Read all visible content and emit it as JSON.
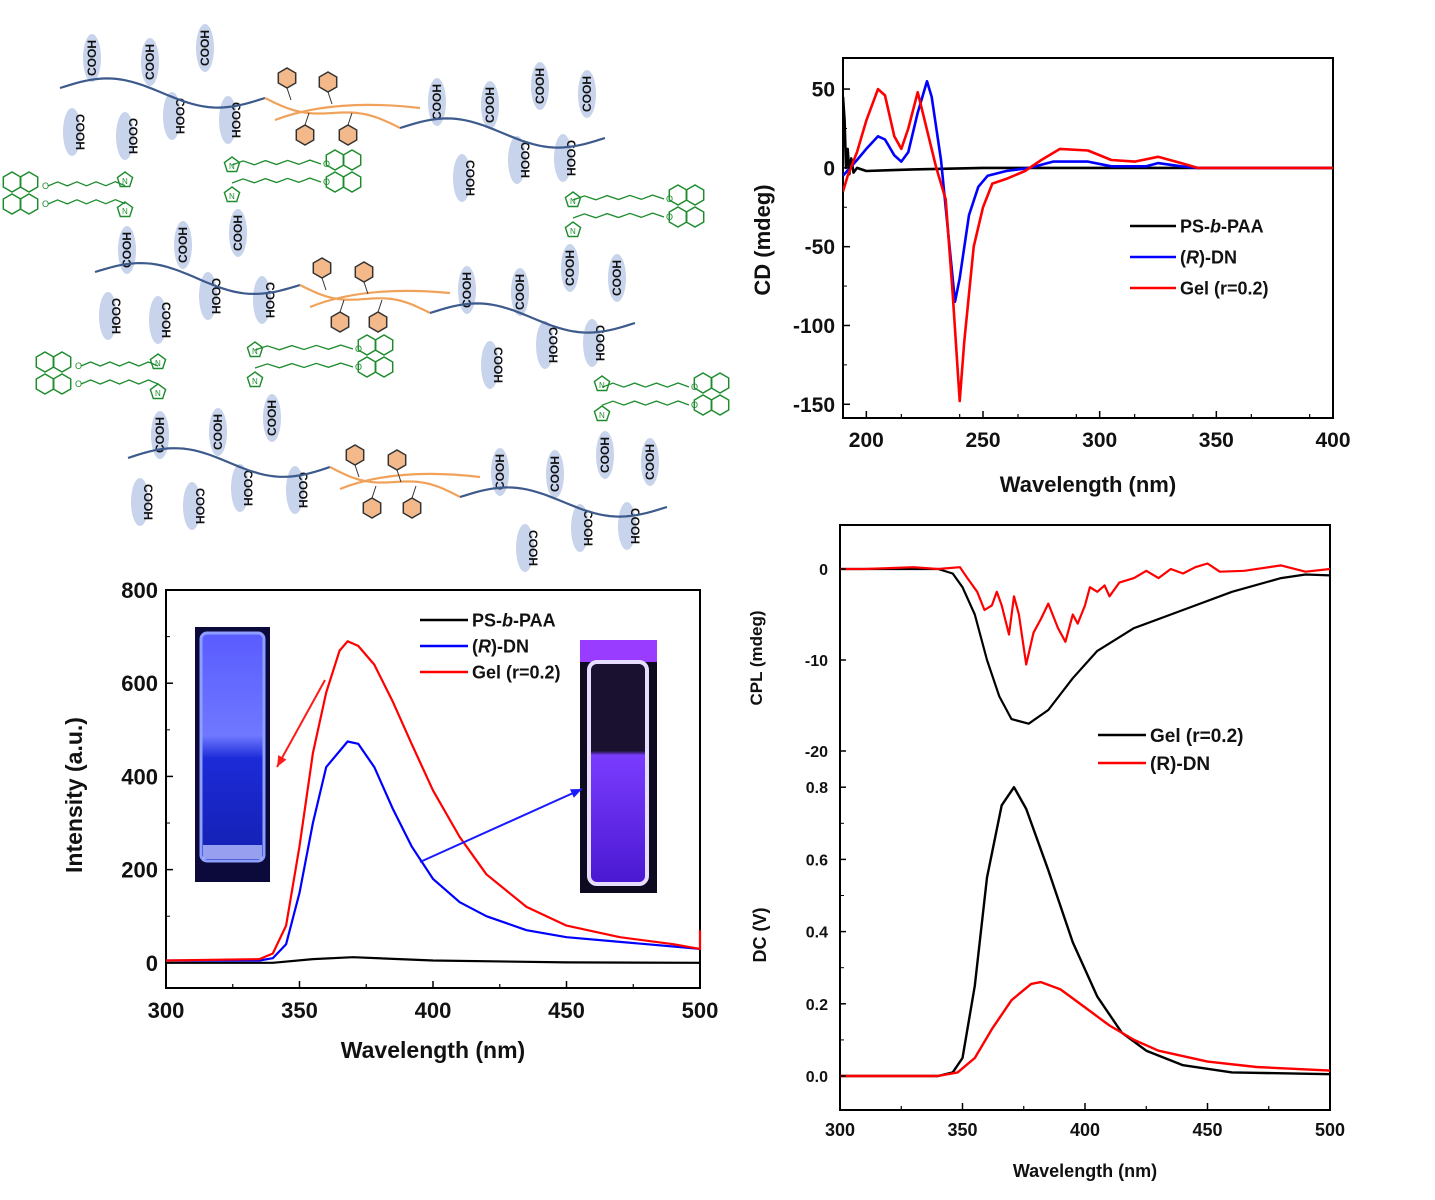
{
  "scheme": {
    "cooh_label": "COOH",
    "atom_n": "N",
    "atom_o": "O",
    "colors": {
      "chain": "#3d5a8c",
      "ps_block": "#f0a25a",
      "phenyl": "#f3b98a",
      "cooh_bg": "#c8d3ec",
      "crosslinker": "#1e8c2e"
    }
  },
  "chart_data": [
    {
      "id": "cd",
      "type": "line",
      "title": "",
      "xlabel": "Wavelength (nm)",
      "ylabel": "CD (mdeg)",
      "xlim": [
        190,
        400
      ],
      "ylim": [
        -158.7,
        69.7
      ],
      "xticks": [
        200,
        250,
        300,
        350,
        400
      ],
      "yticks": [
        -150,
        -100,
        -50,
        0,
        50
      ],
      "grid": false,
      "legend": "right-middle",
      "series": [
        {
          "name": "PS-b-PAA",
          "color": "#000000",
          "points": [
            [
              190,
              45
            ],
            [
              190.7,
              30
            ],
            [
              191.3,
              0
            ],
            [
              192,
              12
            ],
            [
              192.7,
              -4
            ],
            [
              193.5,
              6
            ],
            [
              194.5,
              -3
            ],
            [
              196,
              0
            ],
            [
              200,
              -2
            ],
            [
              210,
              -1.5
            ],
            [
              220,
              -1
            ],
            [
              250,
              0
            ],
            [
              300,
              0
            ],
            [
              400,
              0
            ]
          ]
        },
        {
          "name": "(R)-DN",
          "color": "#0000ff",
          "points": [
            [
              190,
              -5
            ],
            [
              193,
              0
            ],
            [
              196,
              5
            ],
            [
              200,
              12
            ],
            [
              205,
              20
            ],
            [
              208,
              18
            ],
            [
              212,
              8
            ],
            [
              215,
              4
            ],
            [
              218,
              10
            ],
            [
              222,
              35
            ],
            [
              226,
              55
            ],
            [
              228,
              45
            ],
            [
              232,
              5
            ],
            [
              235,
              -40
            ],
            [
              238,
              -85
            ],
            [
              240,
              -70
            ],
            [
              244,
              -30
            ],
            [
              248,
              -12
            ],
            [
              252,
              -5
            ],
            [
              260,
              -2
            ],
            [
              270,
              0
            ],
            [
              280,
              4
            ],
            [
              295,
              4
            ],
            [
              305,
              1
            ],
            [
              320,
              1
            ],
            [
              325,
              3
            ],
            [
              335,
              1
            ],
            [
              342,
              0
            ],
            [
              400,
              0
            ]
          ]
        },
        {
          "name": "Gel (r=0.2)",
          "color": "#ff0000",
          "points": [
            [
              190,
              -15
            ],
            [
              192,
              -5
            ],
            [
              196,
              10
            ],
            [
              200,
              30
            ],
            [
              205,
              50
            ],
            [
              208,
              46
            ],
            [
              212,
              20
            ],
            [
              215,
              12
            ],
            [
              218,
              25
            ],
            [
              222,
              48
            ],
            [
              225,
              30
            ],
            [
              230,
              0
            ],
            [
              234,
              -20
            ],
            [
              237,
              -80
            ],
            [
              240,
              -148
            ],
            [
              242,
              -110
            ],
            [
              246,
              -50
            ],
            [
              250,
              -25
            ],
            [
              254,
              -10
            ],
            [
              260,
              -7
            ],
            [
              268,
              -2
            ],
            [
              275,
              5
            ],
            [
              283,
              12
            ],
            [
              295,
              11
            ],
            [
              305,
              5
            ],
            [
              315,
              4
            ],
            [
              325,
              7
            ],
            [
              335,
              3
            ],
            [
              342,
              0
            ],
            [
              400,
              0
            ]
          ]
        }
      ]
    },
    {
      "id": "pl",
      "type": "line",
      "title": "",
      "xlabel": "Wavelength (nm)",
      "ylabel": "Intensity (a.u.)",
      "xlim": [
        300,
        500
      ],
      "ylim": [
        -54,
        800
      ],
      "xticks": [
        300,
        350,
        400,
        450,
        500
      ],
      "yticks": [
        0,
        200,
        400,
        600,
        800
      ],
      "grid": false,
      "legend": "top-right",
      "series": [
        {
          "name": "PS-b-PAA",
          "color": "#000000",
          "points": [
            [
              300,
              0
            ],
            [
              340,
              0
            ],
            [
              355,
              8
            ],
            [
              370,
              12
            ],
            [
              400,
              5
            ],
            [
              450,
              1
            ],
            [
              500,
              0
            ]
          ]
        },
        {
          "name": "(R)-DN",
          "color": "#0000ff",
          "points": [
            [
              300,
              5
            ],
            [
              335,
              5
            ],
            [
              340,
              10
            ],
            [
              345,
              40
            ],
            [
              350,
              150
            ],
            [
              355,
              300
            ],
            [
              360,
              420
            ],
            [
              368,
              475
            ],
            [
              372,
              470
            ],
            [
              378,
              420
            ],
            [
              385,
              330
            ],
            [
              392,
              250
            ],
            [
              400,
              180
            ],
            [
              410,
              130
            ],
            [
              420,
              100
            ],
            [
              435,
              70
            ],
            [
              450,
              55
            ],
            [
              470,
              45
            ],
            [
              490,
              35
            ],
            [
              500,
              30
            ]
          ]
        },
        {
          "name": "Gel (r=0.2)",
          "color": "#ff0000",
          "points": [
            [
              300,
              5
            ],
            [
              335,
              8
            ],
            [
              340,
              20
            ],
            [
              345,
              80
            ],
            [
              350,
              250
            ],
            [
              355,
              450
            ],
            [
              360,
              580
            ],
            [
              365,
              670
            ],
            [
              368,
              690
            ],
            [
              372,
              680
            ],
            [
              378,
              640
            ],
            [
              385,
              560
            ],
            [
              392,
              470
            ],
            [
              400,
              370
            ],
            [
              410,
              270
            ],
            [
              420,
              190
            ],
            [
              435,
              120
            ],
            [
              450,
              80
            ],
            [
              470,
              55
            ],
            [
              490,
              40
            ],
            [
              500,
              30
            ],
            [
              500,
              70
            ]
          ]
        }
      ],
      "insets": {
        "left_photo": {
          "description_color": "#2a2aff"
        },
        "right_photo": {
          "description_color": "#5a1aff"
        }
      }
    },
    {
      "id": "cpl",
      "type": "line",
      "title": "",
      "xlabel": "Wavelength (nm)",
      "ylabel": "CPL (mdeg)",
      "xlim": [
        300,
        500
      ],
      "ylim": [
        -21,
        4.8
      ],
      "xticks": [
        300,
        350,
        400,
        450,
        500
      ],
      "yticks": [
        -20,
        -10,
        0
      ],
      "grid": false,
      "legend": "right-bottom",
      "series": [
        {
          "name": "Gel (r=0.2)",
          "color": "#000000",
          "points": [
            [
              300,
              0
            ],
            [
              340,
              0
            ],
            [
              346,
              -0.5
            ],
            [
              350,
              -2
            ],
            [
              355,
              -5
            ],
            [
              360,
              -10
            ],
            [
              365,
              -14
            ],
            [
              370,
              -16.5
            ],
            [
              377,
              -17
            ],
            [
              385,
              -15.5
            ],
            [
              395,
              -12
            ],
            [
              405,
              -9
            ],
            [
              420,
              -6.5
            ],
            [
              440,
              -4.5
            ],
            [
              460,
              -2.5
            ],
            [
              480,
              -1
            ],
            [
              490,
              -0.6
            ],
            [
              500,
              -0.7
            ]
          ]
        },
        {
          "name": "(R)-DN",
          "color": "#ff0000",
          "points": [
            [
              300,
              0
            ],
            [
              310,
              0
            ],
            [
              330,
              0.2
            ],
            [
              340,
              0
            ],
            [
              349,
              0.2
            ],
            [
              352,
              -1
            ],
            [
              356,
              -2.5
            ],
            [
              359,
              -4.5
            ],
            [
              362,
              -4
            ],
            [
              364,
              -2.5
            ],
            [
              366,
              -4
            ],
            [
              369,
              -7.2
            ],
            [
              371,
              -3
            ],
            [
              373,
              -5
            ],
            [
              376,
              -10.5
            ],
            [
              379,
              -7
            ],
            [
              382,
              -5.5
            ],
            [
              385,
              -3.8
            ],
            [
              389,
              -6.5
            ],
            [
              392,
              -8
            ],
            [
              395,
              -5
            ],
            [
              397,
              -6
            ],
            [
              400,
              -4
            ],
            [
              402,
              -2
            ],
            [
              405,
              -2.5
            ],
            [
              408,
              -1.8
            ],
            [
              410,
              -3
            ],
            [
              414,
              -1.5
            ],
            [
              420,
              -1
            ],
            [
              425,
              -0.2
            ],
            [
              430,
              -1
            ],
            [
              435,
              0
            ],
            [
              440,
              -0.5
            ],
            [
              445,
              0.2
            ],
            [
              450,
              0.6
            ],
            [
              455,
              -0.3
            ],
            [
              465,
              -0.2
            ],
            [
              480,
              0.4
            ],
            [
              490,
              -0.3
            ],
            [
              500,
              0
            ]
          ]
        }
      ]
    },
    {
      "id": "dc",
      "type": "line",
      "title": "",
      "xlabel": "Wavelength (nm)",
      "ylabel": "DC (V)",
      "xlim": [
        300,
        500
      ],
      "ylim": [
        -0.197,
        0.8
      ],
      "xticks": [
        300,
        350,
        400,
        450,
        500
      ],
      "yticks": [
        0.0,
        0.2,
        0.4,
        0.6,
        0.8
      ],
      "grid": false,
      "series": [
        {
          "name": "Gel (r=0.2)",
          "color": "#000000",
          "points": [
            [
              300,
              0
            ],
            [
              340,
              0
            ],
            [
              346,
              0.01
            ],
            [
              350,
              0.05
            ],
            [
              355,
              0.25
            ],
            [
              360,
              0.55
            ],
            [
              366,
              0.75
            ],
            [
              371,
              0.8
            ],
            [
              376,
              0.74
            ],
            [
              385,
              0.57
            ],
            [
              395,
              0.37
            ],
            [
              405,
              0.22
            ],
            [
              415,
              0.12
            ],
            [
              425,
              0.07
            ],
            [
              440,
              0.03
            ],
            [
              460,
              0.01
            ],
            [
              500,
              0.005
            ]
          ]
        },
        {
          "name": "(R)-DN",
          "color": "#ff0000",
          "points": [
            [
              300,
              0
            ],
            [
              340,
              0
            ],
            [
              348,
              0.01
            ],
            [
              355,
              0.05
            ],
            [
              362,
              0.13
            ],
            [
              370,
              0.21
            ],
            [
              378,
              0.255
            ],
            [
              382,
              0.26
            ],
            [
              390,
              0.24
            ],
            [
              400,
              0.19
            ],
            [
              410,
              0.14
            ],
            [
              420,
              0.1
            ],
            [
              430,
              0.07
            ],
            [
              450,
              0.04
            ],
            [
              470,
              0.025
            ],
            [
              500,
              0.015
            ]
          ]
        }
      ]
    }
  ]
}
